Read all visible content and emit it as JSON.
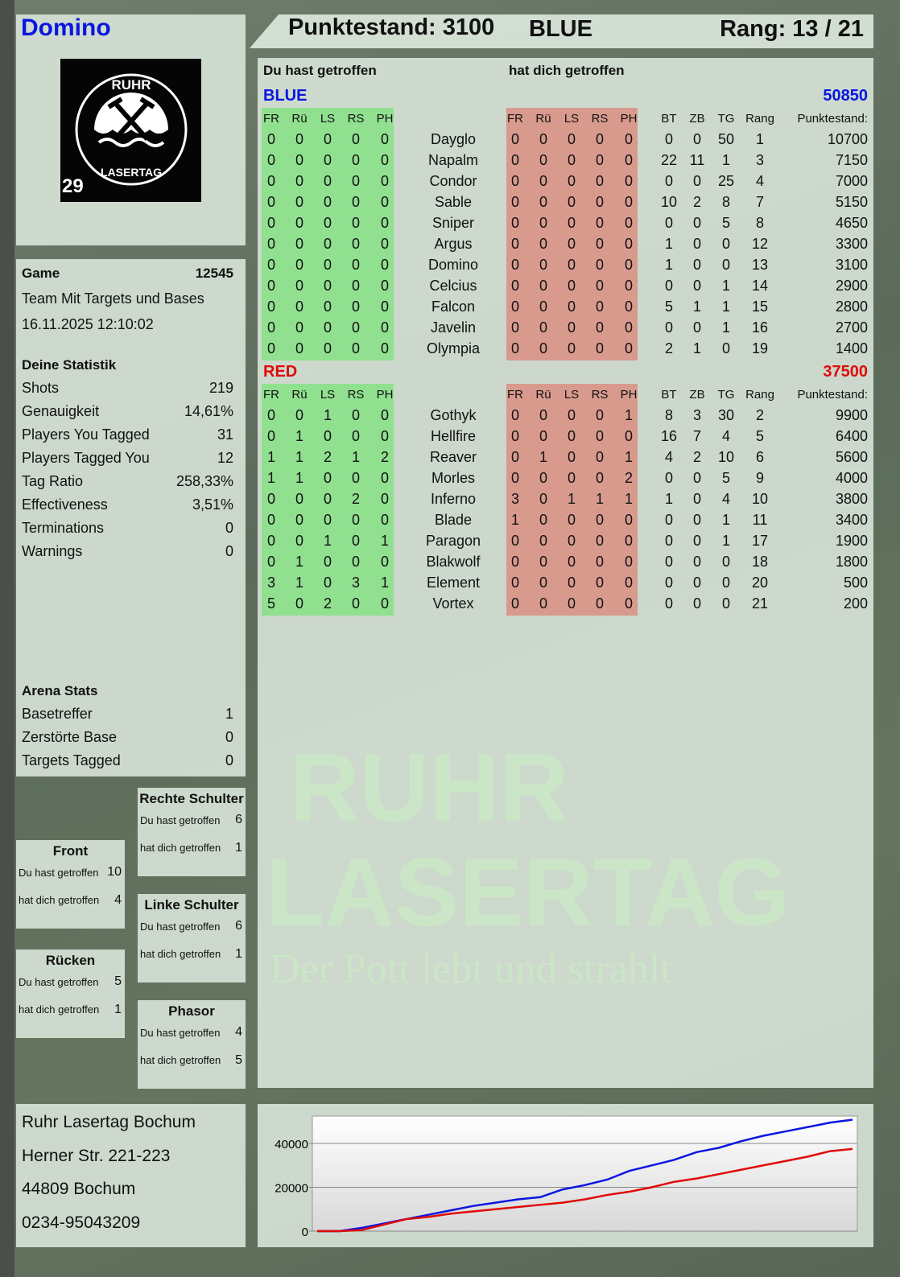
{
  "player": {
    "name": "Domino",
    "logo_text": "RUHR LASERTAG",
    "logo_number": "29"
  },
  "header": {
    "score_label": "Punktestand: 3100",
    "team": "BLUE",
    "rank_label": "Rang: 13 / 21"
  },
  "colors": {
    "blue": "#0a16e0",
    "red": "#e00a0a",
    "green_band": "#90e090",
    "red_band": "#d99a8e"
  },
  "stats": {
    "game_label": "Game",
    "game_id": "12545",
    "mode": "Team Mit Targets und Bases",
    "datetime": "16.11.2025 12:10:02",
    "heading": "Deine Statistik",
    "rows": [
      {
        "label": "Shots",
        "value": "219"
      },
      {
        "label": "Genauigkeit",
        "value": "14,61%"
      },
      {
        "label": "Players You Tagged",
        "value": "31"
      },
      {
        "label": "Players Tagged You",
        "value": "12"
      },
      {
        "label": "Tag Ratio",
        "value": "258,33%"
      },
      {
        "label": "Effectiveness",
        "value": "3,51%"
      },
      {
        "label": "Terminations",
        "value": "0"
      },
      {
        "label": "Warnings",
        "value": "0"
      }
    ],
    "arena_heading": "Arena Stats",
    "arena_rows": [
      {
        "label": "Basetreffer",
        "value": "1"
      },
      {
        "label": "Zerstörte Base",
        "value": "0"
      },
      {
        "label": "Targets Tagged",
        "value": "0"
      }
    ]
  },
  "zones": [
    {
      "title": "Rechte Schulter",
      "hit_label": "Du hast getroffen",
      "hit": "6",
      "got_label": "hat dich getroffen",
      "got": "1"
    },
    {
      "title": "Front",
      "hit_label": "Du hast getroffen",
      "hit": "10",
      "got_label": "hat dich getroffen",
      "got": "4"
    },
    {
      "title": "Linke Schulter",
      "hit_label": "Du hast getroffen",
      "hit": "6",
      "got_label": "hat dich getroffen",
      "got": "1"
    },
    {
      "title": "Rücken",
      "hit_label": "Du hast getroffen",
      "hit": "5",
      "got_label": "hat dich getroffen",
      "got": "1"
    },
    {
      "title": "Phasor",
      "hit_label": "Du hast getroffen",
      "hit": "4",
      "got_label": "hat dich getroffen",
      "got": "5"
    }
  ],
  "main": {
    "you_hit": "Du hast getroffen",
    "hit_you": "hat dich getroffen",
    "columns": [
      "FR",
      "Rü",
      "LS",
      "RS",
      "PH",
      "FR",
      "Rü",
      "LS",
      "RS",
      "PH",
      "BT",
      "ZB",
      "TG",
      "Rang",
      "Punktestand:"
    ],
    "teams": [
      {
        "name": "BLUE",
        "score": "50850",
        "color": "#0a16e0",
        "players": [
          [
            "Dayglo",
            [
              0,
              0,
              0,
              0,
              0
            ],
            [
              0,
              0,
              0,
              0,
              0
            ],
            0,
            0,
            50,
            1,
            10700
          ],
          [
            "Napalm",
            [
              0,
              0,
              0,
              0,
              0
            ],
            [
              0,
              0,
              0,
              0,
              0
            ],
            22,
            11,
            1,
            3,
            7150
          ],
          [
            "Condor",
            [
              0,
              0,
              0,
              0,
              0
            ],
            [
              0,
              0,
              0,
              0,
              0
            ],
            0,
            0,
            25,
            4,
            7000
          ],
          [
            "Sable",
            [
              0,
              0,
              0,
              0,
              0
            ],
            [
              0,
              0,
              0,
              0,
              0
            ],
            10,
            2,
            8,
            7,
            5150
          ],
          [
            "Sniper",
            [
              0,
              0,
              0,
              0,
              0
            ],
            [
              0,
              0,
              0,
              0,
              0
            ],
            0,
            0,
            5,
            8,
            4650
          ],
          [
            "Argus",
            [
              0,
              0,
              0,
              0,
              0
            ],
            [
              0,
              0,
              0,
              0,
              0
            ],
            1,
            0,
            0,
            12,
            3300
          ],
          [
            "Domino",
            [
              0,
              0,
              0,
              0,
              0
            ],
            [
              0,
              0,
              0,
              0,
              0
            ],
            1,
            0,
            0,
            13,
            3100
          ],
          [
            "Celcius",
            [
              0,
              0,
              0,
              0,
              0
            ],
            [
              0,
              0,
              0,
              0,
              0
            ],
            0,
            0,
            1,
            14,
            2900
          ],
          [
            "Falcon",
            [
              0,
              0,
              0,
              0,
              0
            ],
            [
              0,
              0,
              0,
              0,
              0
            ],
            5,
            1,
            1,
            15,
            2800
          ],
          [
            "Javelin",
            [
              0,
              0,
              0,
              0,
              0
            ],
            [
              0,
              0,
              0,
              0,
              0
            ],
            0,
            0,
            1,
            16,
            2700
          ],
          [
            "Olympia",
            [
              0,
              0,
              0,
              0,
              0
            ],
            [
              0,
              0,
              0,
              0,
              0
            ],
            2,
            1,
            0,
            19,
            1400
          ]
        ]
      },
      {
        "name": "RED",
        "score": "37500",
        "color": "#e00a0a",
        "players": [
          [
            "Gothyk",
            [
              0,
              0,
              1,
              0,
              0
            ],
            [
              0,
              0,
              0,
              0,
              1
            ],
            8,
            3,
            30,
            2,
            9900
          ],
          [
            "Hellfire",
            [
              0,
              1,
              0,
              0,
              0
            ],
            [
              0,
              0,
              0,
              0,
              0
            ],
            16,
            7,
            4,
            5,
            6400
          ],
          [
            "Reaver",
            [
              1,
              1,
              2,
              1,
              2
            ],
            [
              0,
              1,
              0,
              0,
              1
            ],
            4,
            2,
            10,
            6,
            5600
          ],
          [
            "Morles",
            [
              1,
              1,
              0,
              0,
              0
            ],
            [
              0,
              0,
              0,
              0,
              2
            ],
            0,
            0,
            5,
            9,
            4000
          ],
          [
            "Inferno",
            [
              0,
              0,
              0,
              2,
              0
            ],
            [
              3,
              0,
              1,
              1,
              1
            ],
            1,
            0,
            4,
            10,
            3800
          ],
          [
            "Blade",
            [
              0,
              0,
              0,
              0,
              0
            ],
            [
              1,
              0,
              0,
              0,
              0
            ],
            0,
            0,
            1,
            11,
            3400
          ],
          [
            "Paragon",
            [
              0,
              0,
              1,
              0,
              1
            ],
            [
              0,
              0,
              0,
              0,
              0
            ],
            0,
            0,
            1,
            17,
            1900
          ],
          [
            "Blakwolf",
            [
              0,
              1,
              0,
              0,
              0
            ],
            [
              0,
              0,
              0,
              0,
              0
            ],
            0,
            0,
            0,
            18,
            1800
          ],
          [
            "Element",
            [
              3,
              1,
              0,
              3,
              1
            ],
            [
              0,
              0,
              0,
              0,
              0
            ],
            0,
            0,
            0,
            20,
            500
          ],
          [
            "Vortex",
            [
              5,
              0,
              2,
              0,
              0
            ],
            [
              0,
              0,
              0,
              0,
              0
            ],
            0,
            0,
            0,
            21,
            200
          ]
        ]
      }
    ]
  },
  "watermark": {
    "line1": "RUHR",
    "line2": "LASERTAG",
    "slogan": "Der Pott lebt und strahlt"
  },
  "address": [
    "Ruhr Lasertag Bochum",
    "Herner Str. 221-223",
    "44809 Bochum",
    "0234-95043209"
  ],
  "chart_data": {
    "type": "line",
    "ylim": [
      0,
      52500
    ],
    "yticks": [
      "0",
      "20000",
      "40000"
    ],
    "grid": true,
    "series": [
      {
        "color": "#0a16e0",
        "values": [
          0,
          0,
          1500,
          3500,
          5500,
          7500,
          9500,
          11500,
          13000,
          14500,
          15500,
          19000,
          21000,
          23500,
          27500,
          30000,
          32500,
          36000,
          38000,
          41000,
          43500,
          45500,
          47500,
          49500,
          50850
        ]
      },
      {
        "color": "#e00a0a",
        "values": [
          0,
          0,
          500,
          3000,
          5500,
          6500,
          8000,
          9000,
          10000,
          11000,
          12000,
          13000,
          14500,
          16500,
          18000,
          20000,
          22500,
          24000,
          26000,
          28000,
          30000,
          32000,
          34000,
          36500,
          37500
        ]
      }
    ]
  }
}
